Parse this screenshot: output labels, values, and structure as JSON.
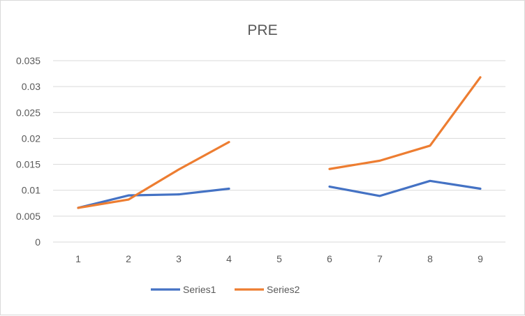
{
  "chart_data": {
    "type": "line",
    "title": "PRE",
    "xlabel": "",
    "ylabel": "",
    "categories": [
      "1",
      "2",
      "3",
      "4",
      "5",
      "6",
      "7",
      "8",
      "9"
    ],
    "ylim": [
      0,
      0.035
    ],
    "yticks": [
      "0",
      "0.005",
      "0.01",
      "0.015",
      "0.02",
      "0.025",
      "0.03",
      "0.035"
    ],
    "grid": true,
    "legend_position": "bottom",
    "series": [
      {
        "name": "Series1",
        "color": "#4472c4",
        "values": [
          0.0066,
          0.009,
          0.0092,
          0.0103,
          null,
          0.0107,
          0.0089,
          0.0118,
          0.0103
        ]
      },
      {
        "name": "Series2",
        "color": "#ed7d31",
        "values": [
          0.0066,
          0.0082,
          0.014,
          0.0193,
          null,
          0.0141,
          0.0157,
          0.0186,
          0.0318
        ]
      }
    ]
  }
}
